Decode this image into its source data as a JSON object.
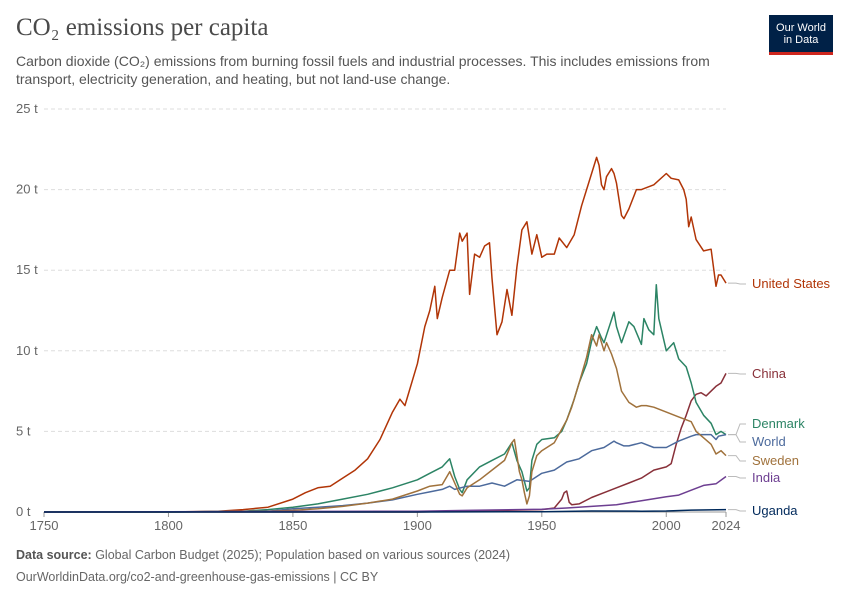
{
  "header": {
    "title": "CO₂ emissions per capita",
    "subtitle": "Carbon dioxide (CO₂) emissions from burning fossil fuels and industrial processes. This includes emissions from transport, electricity generation, and heating, but not land-use change.",
    "logo_line1": "Our World",
    "logo_line2": "in Data"
  },
  "footer": {
    "source_label": "Data source:",
    "source_text": " Global Carbon Budget (2025); Population based on various sources (2024)",
    "url": "OurWorldinData.org/co2-and-greenhouse-gas-emissions | CC BY"
  },
  "chart_data": {
    "type": "line",
    "title": "CO₂ emissions per capita",
    "xlabel": "",
    "ylabel": "",
    "xlim": [
      1750,
      2024
    ],
    "ylim": [
      0,
      25
    ],
    "x_ticks": [
      1750,
      1800,
      1850,
      1900,
      1950,
      2000,
      2024
    ],
    "y_ticks": [
      0,
      5,
      10,
      15,
      20,
      25
    ],
    "y_tick_labels": [
      "0 t",
      "5 t",
      "10 t",
      "15 t",
      "20 t",
      "25 t"
    ],
    "grid": "horizontal dashed",
    "legend": "right-end line labels",
    "series": [
      {
        "name": "United States",
        "color": "#b13507",
        "x": [
          1750,
          1800,
          1820,
          1830,
          1840,
          1850,
          1855,
          1860,
          1865,
          1870,
          1875,
          1880,
          1885,
          1890,
          1893,
          1895,
          1900,
          1903,
          1905,
          1907,
          1908,
          1910,
          1913,
          1915,
          1917,
          1918,
          1920,
          1921,
          1923,
          1925,
          1927,
          1929,
          1930,
          1932,
          1934,
          1936,
          1938,
          1940,
          1942,
          1944,
          1946,
          1948,
          1950,
          1952,
          1955,
          1957,
          1960,
          1963,
          1966,
          1970,
          1972,
          1973,
          1974,
          1975,
          1976,
          1978,
          1979,
          1980,
          1982,
          1983,
          1985,
          1988,
          1990,
          1995,
          2000,
          2002,
          2005,
          2007,
          2008,
          2009,
          2010,
          2012,
          2015,
          2018,
          2020,
          2021,
          2022,
          2024
        ],
        "y": [
          0,
          0,
          0.05,
          0.15,
          0.3,
          0.8,
          1.2,
          1.5,
          1.6,
          2.1,
          2.6,
          3.3,
          4.5,
          6.2,
          7.0,
          6.6,
          9.2,
          11.5,
          12.5,
          14.0,
          12.0,
          13.3,
          15.0,
          15.0,
          17.3,
          16.8,
          17.3,
          13.5,
          16.0,
          15.8,
          16.5,
          16.7,
          14.5,
          11.0,
          11.8,
          13.8,
          12.2,
          15.2,
          17.5,
          18.0,
          16.0,
          17.2,
          15.8,
          16.0,
          16.0,
          17.0,
          16.4,
          17.2,
          19.0,
          21.0,
          22.0,
          21.5,
          20.3,
          20.0,
          20.8,
          21.3,
          21.0,
          20.4,
          18.4,
          18.2,
          18.8,
          20.0,
          20.0,
          20.3,
          21.0,
          20.7,
          20.6,
          20.0,
          19.4,
          17.7,
          18.3,
          16.9,
          16.2,
          16.3,
          14.0,
          14.7,
          14.7,
          14.2
        ]
      },
      {
        "name": "China",
        "color": "#883039",
        "x": [
          1750,
          1900,
          1950,
          1955,
          1958,
          1959,
          1960,
          1961,
          1962,
          1965,
          1970,
          1975,
          1980,
          1985,
          1990,
          1995,
          2000,
          2002,
          2004,
          2006,
          2008,
          2010,
          2012,
          2014,
          2016,
          2018,
          2020,
          2022,
          2024
        ],
        "y": [
          0,
          0,
          0.15,
          0.25,
          0.8,
          1.2,
          1.3,
          0.6,
          0.45,
          0.5,
          0.9,
          1.2,
          1.5,
          1.8,
          2.1,
          2.6,
          2.8,
          3.0,
          4.2,
          5.2,
          6.0,
          6.9,
          7.3,
          7.4,
          7.2,
          7.5,
          7.8,
          8.0,
          8.6
        ]
      },
      {
        "name": "Denmark",
        "color": "#2c8465",
        "x": [
          1750,
          1800,
          1830,
          1840,
          1850,
          1860,
          1870,
          1880,
          1890,
          1900,
          1905,
          1910,
          1913,
          1915,
          1917,
          1918,
          1920,
          1925,
          1930,
          1935,
          1938,
          1940,
          1942,
          1944,
          1945,
          1946,
          1948,
          1950,
          1955,
          1958,
          1960,
          1963,
          1965,
          1968,
          1970,
          1972,
          1974,
          1975,
          1979,
          1980,
          1982,
          1985,
          1987,
          1990,
          1991,
          1993,
          1995,
          1996,
          1997,
          2000,
          2003,
          2005,
          2008,
          2010,
          2012,
          2015,
          2018,
          2020,
          2022,
          2024
        ],
        "y": [
          0,
          0,
          0.05,
          0.15,
          0.3,
          0.5,
          0.8,
          1.1,
          1.5,
          2.0,
          2.4,
          2.8,
          3.3,
          2.2,
          1.4,
          1.2,
          2.0,
          2.8,
          3.2,
          3.6,
          4.3,
          3.2,
          2.5,
          1.3,
          1.5,
          3.2,
          4.2,
          4.5,
          4.6,
          5.0,
          5.7,
          7.0,
          8.0,
          9.2,
          10.6,
          11.5,
          10.8,
          10.5,
          12.4,
          11.5,
          10.5,
          11.8,
          11.5,
          10.4,
          12.0,
          11.3,
          11.0,
          14.1,
          12.0,
          10.0,
          10.5,
          9.5,
          9.0,
          8.0,
          6.8,
          6.0,
          5.5,
          4.8,
          5.0,
          4.8
        ]
      },
      {
        "name": "World",
        "color": "#4c6a9c",
        "x": [
          1750,
          1800,
          1840,
          1850,
          1860,
          1870,
          1880,
          1890,
          1900,
          1905,
          1910,
          1913,
          1915,
          1920,
          1925,
          1930,
          1935,
          1940,
          1945,
          1950,
          1955,
          1960,
          1965,
          1970,
          1975,
          1979,
          1980,
          1983,
          1985,
          1990,
          1995,
          2000,
          2005,
          2010,
          2012,
          2015,
          2018,
          2020,
          2021,
          2024
        ],
        "y": [
          0,
          0,
          0.05,
          0.2,
          0.3,
          0.4,
          0.55,
          0.75,
          1.1,
          1.25,
          1.4,
          1.6,
          1.4,
          1.6,
          1.6,
          1.8,
          1.6,
          2.0,
          1.9,
          2.4,
          2.6,
          3.1,
          3.3,
          3.8,
          4.0,
          4.4,
          4.3,
          4.1,
          4.1,
          4.3,
          4.0,
          4.0,
          4.4,
          4.7,
          4.8,
          4.8,
          4.8,
          4.5,
          4.7,
          4.8
        ]
      },
      {
        "name": "Sweden",
        "color": "#a0723c",
        "x": [
          1750,
          1800,
          1840,
          1850,
          1860,
          1870,
          1880,
          1890,
          1900,
          1905,
          1910,
          1913,
          1915,
          1917,
          1918,
          1920,
          1925,
          1930,
          1935,
          1938,
          1939,
          1940,
          1941,
          1942,
          1943,
          1944,
          1945,
          1946,
          1948,
          1950,
          1955,
          1960,
          1962,
          1965,
          1968,
          1970,
          1972,
          1973,
          1975,
          1976,
          1978,
          1980,
          1982,
          1985,
          1988,
          1990,
          1992,
          1995,
          2000,
          2005,
          2010,
          2012,
          2015,
          2018,
          2020,
          2022,
          2024
        ],
        "y": [
          0,
          0,
          0.05,
          0.1,
          0.2,
          0.35,
          0.55,
          0.8,
          1.3,
          1.6,
          1.7,
          2.5,
          1.8,
          1.1,
          1.0,
          1.5,
          2.0,
          2.6,
          3.2,
          4.3,
          4.5,
          3.5,
          2.5,
          2.0,
          1.2,
          0.5,
          1.0,
          2.5,
          3.5,
          3.8,
          4.3,
          5.7,
          6.5,
          8.0,
          9.6,
          11.0,
          10.3,
          11.0,
          10.0,
          10.5,
          9.8,
          8.9,
          7.5,
          6.8,
          6.5,
          6.6,
          6.6,
          6.5,
          6.2,
          5.9,
          5.6,
          5.0,
          4.6,
          4.2,
          3.6,
          3.8,
          3.5
        ]
      },
      {
        "name": "India",
        "color": "#6d3e91",
        "x": [
          1750,
          1900,
          1920,
          1950,
          1960,
          1970,
          1980,
          1990,
          2000,
          2005,
          2010,
          2015,
          2020,
          2024
        ],
        "y": [
          0,
          0.05,
          0.1,
          0.17,
          0.25,
          0.35,
          0.45,
          0.7,
          0.95,
          1.05,
          1.35,
          1.65,
          1.75,
          2.2
        ]
      },
      {
        "name": "Uganda",
        "color": "#00295b",
        "x": [
          1750,
          1900,
          1950,
          1970,
          1990,
          2000,
          2010,
          2024
        ],
        "y": [
          0,
          0,
          0.02,
          0.06,
          0.05,
          0.06,
          0.12,
          0.15
        ]
      }
    ]
  }
}
